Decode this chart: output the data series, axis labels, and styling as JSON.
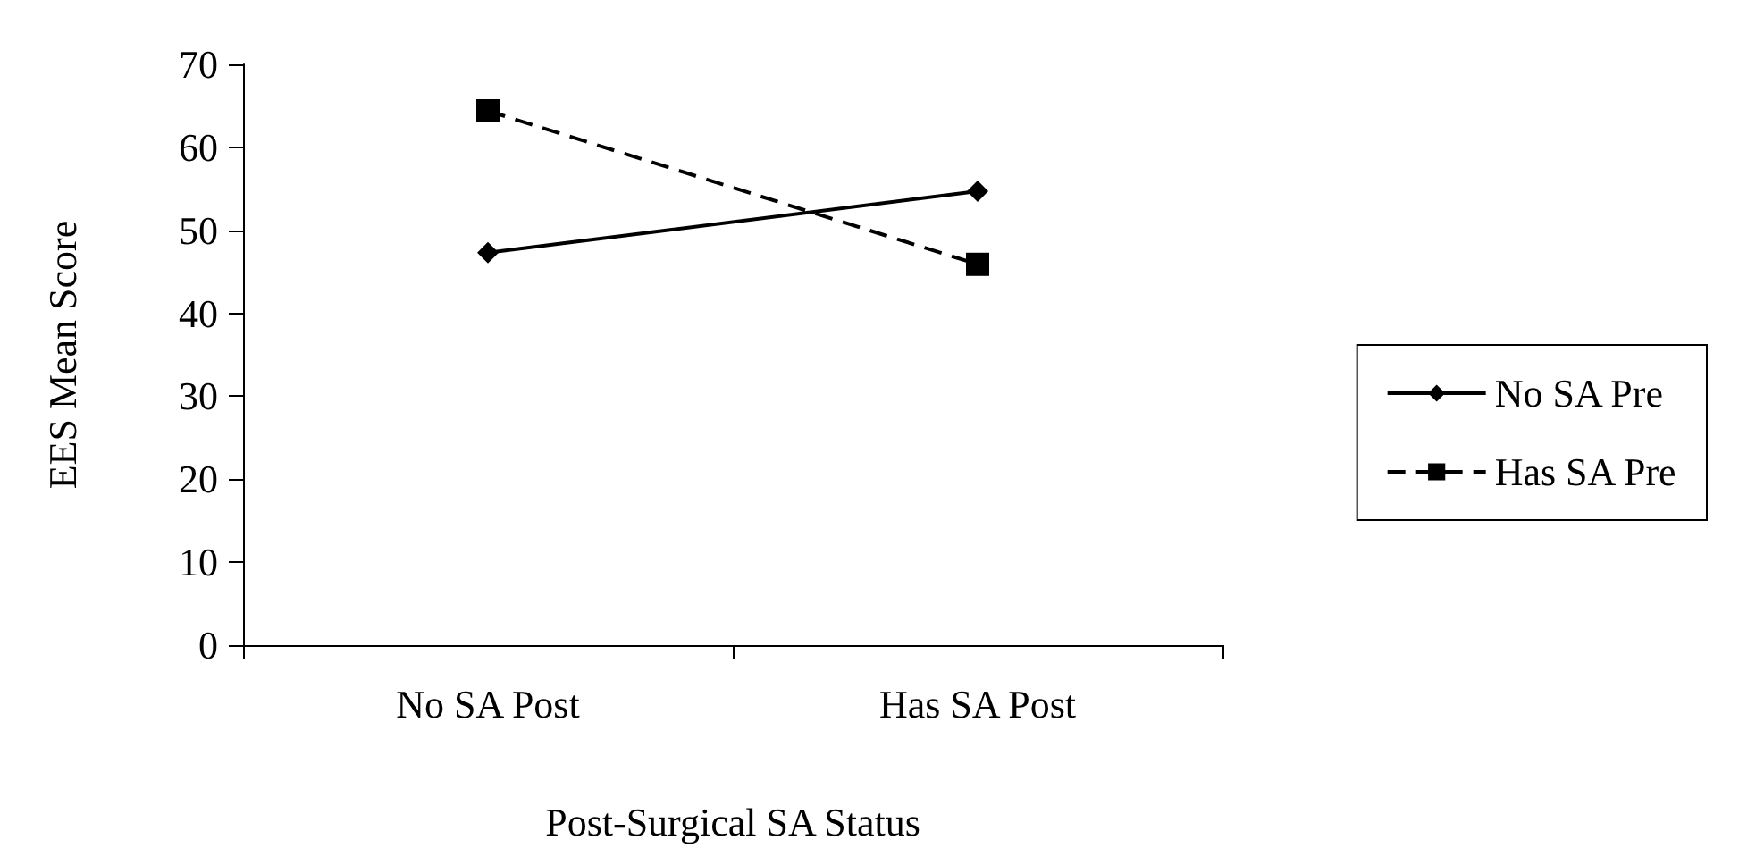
{
  "chart_data": {
    "type": "line",
    "xlabel": "Post-Surgical SA Status",
    "ylabel": "EES Mean Score",
    "categories": [
      "No SA Post",
      "Has SA Post"
    ],
    "series": [
      {
        "name": "No SA Pre",
        "color": "#000000",
        "values": [
          47.3,
          54.7
        ],
        "marker": "diamond",
        "line_style": "solid"
      },
      {
        "name": "Has SA Pre",
        "color": "#000000",
        "values": [
          64.4,
          45.9
        ],
        "marker": "square",
        "line_style": "dashed"
      }
    ],
    "ylim": [
      0,
      70
    ],
    "yticks": [
      0,
      10,
      20,
      30,
      40,
      50,
      60,
      70
    ],
    "grid": false,
    "legend": "right"
  }
}
